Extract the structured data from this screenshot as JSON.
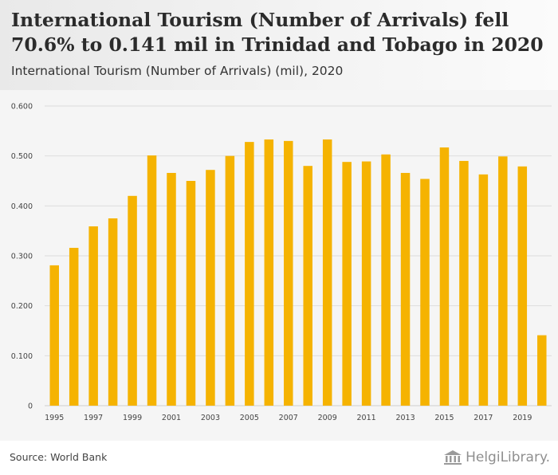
{
  "header": {
    "title": "International Tourism (Number of Arrivals) fell 70.6% to 0.141 mil in Trinidad and Tobago in 2020",
    "subtitle": "International Tourism (Number of Arrivals) (mil), 2020"
  },
  "footer": {
    "source": "Source: World Bank",
    "logo_text": "HelgiLibrary."
  },
  "colors": {
    "bar": "#f5b301",
    "grid": "#dcdcdc",
    "axis_text": "#444444",
    "chart_bg": "#f5f5f5"
  },
  "chart_data": {
    "type": "bar",
    "title": "International Tourism (Number of Arrivals) (mil), 2020",
    "xlabel": "",
    "ylabel": "",
    "categories": [
      "1995",
      "1996",
      "1997",
      "1998",
      "1999",
      "2000",
      "2001",
      "2002",
      "2003",
      "2004",
      "2005",
      "2006",
      "2007",
      "2008",
      "2009",
      "2010",
      "2011",
      "2012",
      "2013",
      "2014",
      "2015",
      "2016",
      "2017",
      "2018",
      "2019",
      "2020"
    ],
    "values": [
      0.281,
      0.316,
      0.359,
      0.375,
      0.42,
      0.501,
      0.466,
      0.45,
      0.472,
      0.5,
      0.528,
      0.533,
      0.53,
      0.48,
      0.533,
      0.488,
      0.489,
      0.503,
      0.466,
      0.454,
      0.517,
      0.49,
      0.463,
      0.499,
      0.479,
      0.141
    ],
    "x_tick_labels": [
      "1995",
      "1997",
      "1999",
      "2001",
      "2003",
      "2005",
      "2007",
      "2009",
      "2011",
      "2013",
      "2015",
      "2017",
      "2019"
    ],
    "y_ticks": [
      0,
      0.1,
      0.2,
      0.3,
      0.4,
      0.5,
      0.6
    ],
    "y_tick_labels": [
      "0",
      "0.100",
      "0.200",
      "0.300",
      "0.400",
      "0.500",
      "0.600"
    ],
    "ylim": [
      0,
      0.6
    ],
    "grid": true,
    "legend": "none"
  }
}
